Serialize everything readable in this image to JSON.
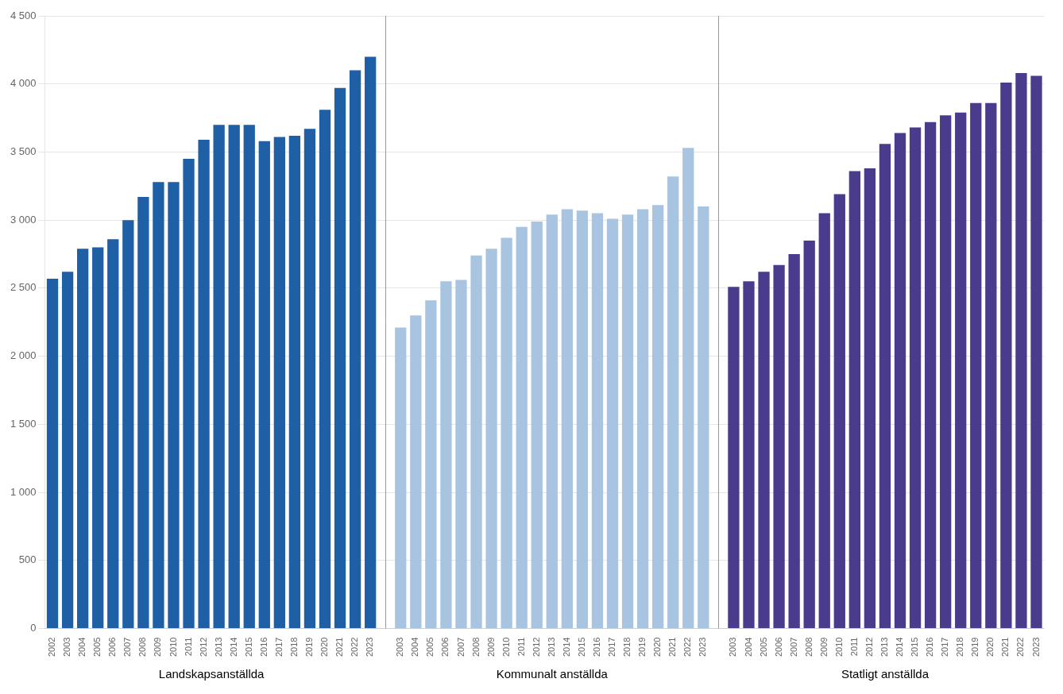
{
  "chart_data": {
    "type": "bar",
    "categories": [
      "2002",
      "2003",
      "2004",
      "2005",
      "2006",
      "2007",
      "2008",
      "2009",
      "2010",
      "2011",
      "2012",
      "2013",
      "2014",
      "2015",
      "2016",
      "2017",
      "2018",
      "2019",
      "2020",
      "2021",
      "2022",
      "2023",
      null,
      "2003",
      "2004",
      "2005",
      "2006",
      "2007",
      "2008",
      "2009",
      "2010",
      "2011",
      "2012",
      "2013",
      "2014",
      "2015",
      "2016",
      "2017",
      "2018",
      "2019",
      "2020",
      "2021",
      "2022",
      "2023",
      null,
      "2003",
      "2004",
      "2005",
      "2006",
      "2007",
      "2008",
      "2009",
      "2010",
      "2011",
      "2012",
      "2013",
      "2014",
      "2015",
      "2016",
      "2017",
      "2018",
      "2019",
      "2020",
      "2021",
      "2022",
      "2023"
    ],
    "series": [
      {
        "name": "Landskapsanställda",
        "color": "#1F5FA6",
        "values": [
          2570,
          2620,
          2790,
          2800,
          2860,
          3000,
          3170,
          3280,
          3280,
          3450,
          3590,
          3700,
          3700,
          3700,
          3580,
          3610,
          3620,
          3670,
          3810,
          3970,
          4100,
          4200,
          null,
          null,
          null,
          null,
          null,
          null,
          null,
          null,
          null,
          null,
          null,
          null,
          null,
          null,
          null,
          null,
          null,
          null,
          null,
          null,
          null,
          null,
          null,
          null,
          null,
          null,
          null,
          null,
          null,
          null,
          null,
          null,
          null,
          null,
          null,
          null,
          null,
          null,
          null,
          null,
          null,
          null,
          null,
          null
        ]
      },
      {
        "name": "Kommunalt anställda",
        "color": "#A8C4E0",
        "values": [
          null,
          null,
          null,
          null,
          null,
          null,
          null,
          null,
          null,
          null,
          null,
          null,
          null,
          null,
          null,
          null,
          null,
          null,
          null,
          null,
          null,
          null,
          null,
          2210,
          2300,
          2410,
          2550,
          2560,
          2740,
          2790,
          2870,
          2950,
          2990,
          3040,
          3080,
          3070,
          3050,
          3010,
          3040,
          3080,
          3110,
          3320,
          3530,
          3100,
          null,
          null,
          null,
          null,
          null,
          null,
          null,
          null,
          null,
          null,
          null,
          null,
          null,
          null,
          null,
          null,
          null,
          null,
          null,
          null,
          null,
          null
        ]
      },
      {
        "name": "Statligt anställda",
        "color": "#4B3B8C",
        "values": [
          null,
          null,
          null,
          null,
          null,
          null,
          null,
          null,
          null,
          null,
          null,
          null,
          null,
          null,
          null,
          null,
          null,
          null,
          null,
          null,
          null,
          null,
          null,
          null,
          null,
          null,
          null,
          null,
          null,
          null,
          null,
          null,
          null,
          null,
          null,
          null,
          null,
          null,
          null,
          null,
          null,
          null,
          null,
          null,
          null,
          2510,
          2550,
          2620,
          2670,
          2750,
          2850,
          3050,
          3190,
          3360,
          3380,
          3560,
          3640,
          3680,
          3720,
          3770,
          3790,
          3860,
          3860,
          4010,
          4080,
          4060
        ]
      }
    ],
    "ylim": [
      0,
      4500
    ],
    "yticks": [
      0,
      500,
      {
        "value": 1000,
        "label": "1 000"
      },
      {
        "value": 1500,
        "label": "1 500"
      },
      {
        "value": 2000,
        "label": "2 000"
      },
      {
        "value": 2500,
        "label": "2 500"
      },
      {
        "value": 3000,
        "label": "3 000"
      },
      {
        "value": 3500,
        "label": "3 500"
      },
      {
        "value": 4000,
        "label": "4 000"
      },
      {
        "value": 4500,
        "label": "4 500"
      }
    ],
    "grid": true
  }
}
